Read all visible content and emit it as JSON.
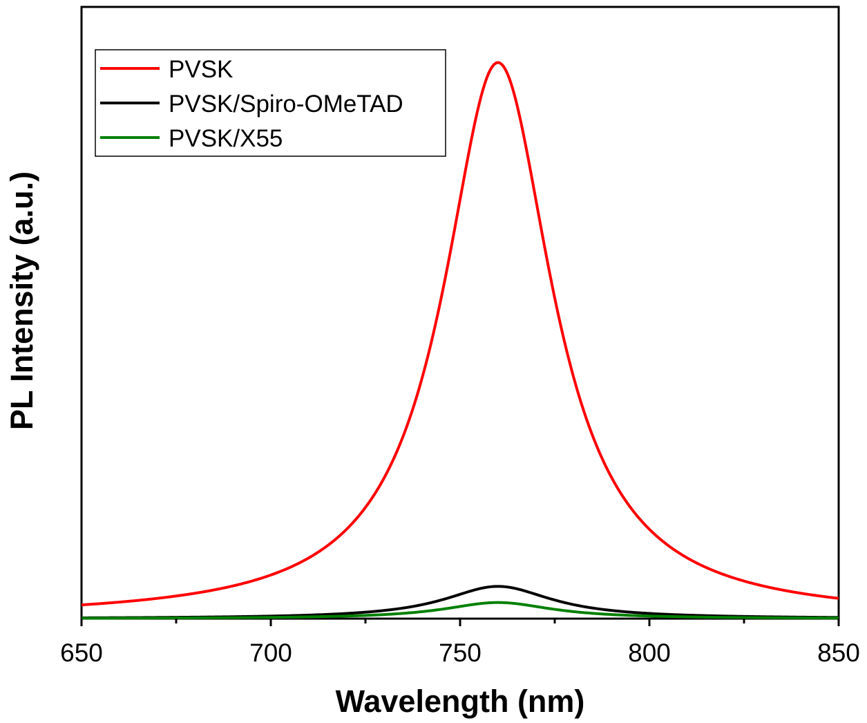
{
  "chart_data": {
    "type": "line",
    "title": "",
    "xlabel": "Wavelength (nm)",
    "ylabel": "PL Intensity (a.u.)",
    "xlim": [
      650,
      850
    ],
    "ylim": [
      0,
      1.1
    ],
    "x_major_ticks": [
      650,
      700,
      750,
      800,
      850
    ],
    "x_major_tick_labels": [
      "650",
      "700",
      "750",
      "800",
      "850"
    ],
    "x_minor_ticks": [
      675,
      725,
      775,
      825
    ],
    "y_tick_labels_shown": false,
    "grid": false,
    "legend_position": "top-left",
    "peak_x": 760,
    "half_width": 17.5,
    "series": [
      {
        "name": "PVSK",
        "color": "#ff0000",
        "peak": 1.0
      },
      {
        "name": "PVSK/Spiro-OMeTAD",
        "color": "#000000",
        "peak": 0.058
      },
      {
        "name": "PVSK/X55",
        "color": "#008000",
        "peak": 0.029
      }
    ]
  }
}
